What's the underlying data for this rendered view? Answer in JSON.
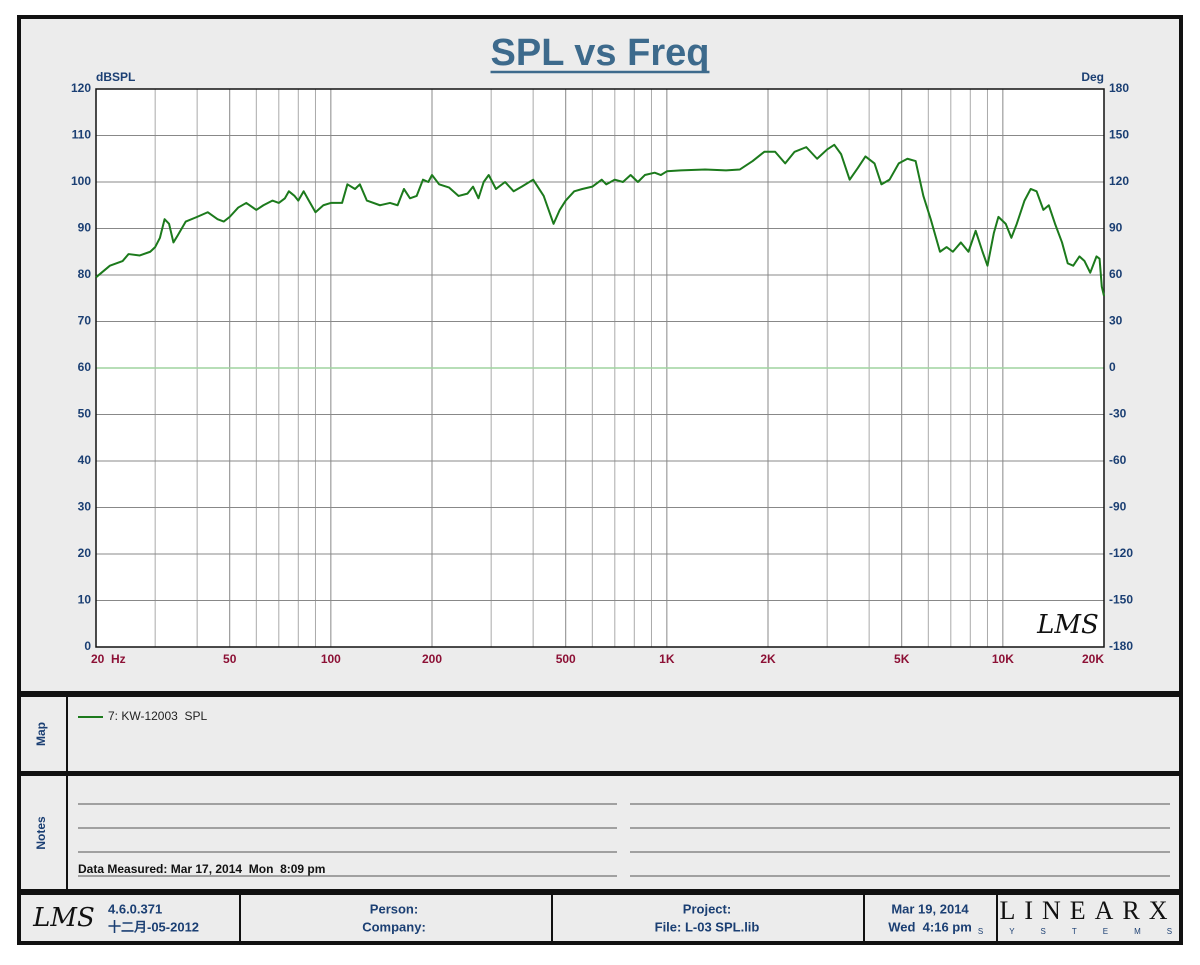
{
  "chart_data": {
    "type": "line",
    "title": "SPL vs Freq",
    "ylabel": "dBSPL",
    "y2label": "Deg",
    "logo": "LMS",
    "x": [
      20,
      22,
      24,
      25,
      27,
      29,
      30,
      31,
      32,
      33,
      34,
      35,
      37,
      40,
      43,
      46,
      48,
      50,
      53,
      56,
      60,
      63,
      67,
      70,
      73,
      75,
      78,
      80,
      83,
      86,
      90,
      95,
      100,
      108,
      112,
      118,
      122,
      128,
      140,
      150,
      158,
      165,
      172,
      180,
      188,
      195,
      200,
      210,
      225,
      240,
      255,
      265,
      275,
      285,
      295,
      310,
      330,
      350,
      370,
      400,
      430,
      460,
      480,
      500,
      530,
      560,
      600,
      640,
      660,
      700,
      740,
      780,
      820,
      860,
      920,
      960,
      1000,
      1100,
      1300,
      1500,
      1650,
      1800,
      1950,
      2100,
      2250,
      2400,
      2600,
      2800,
      3000,
      3150,
      3300,
      3500,
      3700,
      3900,
      4150,
      4350,
      4600,
      4900,
      5200,
      5500,
      5800,
      6100,
      6500,
      6800,
      7100,
      7500,
      7900,
      8300,
      8700,
      9000,
      9400,
      9700,
      10200,
      10600,
      11000,
      11600,
      12100,
      12600,
      13200,
      13700,
      14300,
      15000,
      15600,
      16200,
      16900,
      17500,
      18200,
      19000,
      19400,
      19700,
      20000
    ],
    "series": [
      {
        "name": "7: KW-12003  SPL",
        "color": "#1c7a1c",
        "values": [
          79.5,
          82,
          83,
          84.5,
          84.2,
          85,
          86,
          88,
          92,
          91,
          87,
          88.5,
          91.5,
          92.5,
          93.5,
          92,
          91.5,
          92.5,
          94.5,
          95.5,
          94,
          95,
          96,
          95.5,
          96.5,
          98,
          97,
          96,
          98,
          96,
          93.5,
          95,
          95.5,
          95.5,
          99.5,
          98.5,
          99.5,
          96,
          95,
          95.5,
          95,
          98.5,
          96.5,
          97,
          100.5,
          100,
          101.5,
          99.5,
          98.8,
          97,
          97.5,
          99,
          96.5,
          100,
          101.5,
          98.5,
          100,
          98,
          99,
          100.5,
          97,
          91,
          94,
          96,
          98,
          98.5,
          99,
          100.5,
          99.5,
          100.5,
          100,
          101.5,
          100,
          101.5,
          102,
          101.5,
          102.3,
          102.5,
          102.7,
          102.5,
          102.7,
          104.5,
          106.5,
          106.5,
          104,
          106.5,
          107.5,
          105,
          107,
          108,
          106,
          100.5,
          103,
          105.5,
          104,
          99.5,
          100.5,
          104,
          105,
          104.5,
          97,
          92,
          85,
          86,
          85,
          87,
          85,
          89.5,
          85,
          82,
          89,
          92.5,
          91,
          88,
          91,
          96,
          98.5,
          98,
          94,
          95,
          91,
          87,
          82.5,
          82,
          84,
          83,
          80.5,
          84,
          83.5,
          77.5,
          75.5
        ]
      }
    ],
    "xlim": [
      20,
      20000
    ],
    "log_x": true,
    "xticks": [
      {
        "value": 20,
        "label": "20  Hz"
      },
      50,
      100,
      200,
      500,
      {
        "value": 1000,
        "label": "1K"
      },
      {
        "value": 2000,
        "label": "2K"
      },
      {
        "value": 5000,
        "label": "5K"
      },
      {
        "value": 10000,
        "label": "10K"
      },
      {
        "value": 20000,
        "label": "20K"
      }
    ],
    "ylim": [
      0,
      120
    ],
    "yticks": [
      0,
      10,
      20,
      30,
      40,
      50,
      60,
      70,
      80,
      90,
      100,
      110,
      120
    ],
    "y2lim": [
      -180,
      180
    ],
    "y2ticks": [
      -180,
      -150,
      -120,
      -90,
      -60,
      -30,
      0,
      30,
      60,
      90,
      120,
      150,
      180
    ],
    "grid": true
  },
  "map": {
    "label": "Map"
  },
  "notes": {
    "label": "Notes",
    "measured": "Data Measured: Mar 17, 2014  Mon  8:09 pm"
  },
  "footer": {
    "logo": "LMS",
    "version": "4.6.0.371",
    "build_date": "十二月-05-2012",
    "person": "Person:",
    "company": "Company:",
    "project": "Project:",
    "file": "File: L-03 SPL.lib",
    "date": "Mar 19, 2014",
    "time": "Wed  4:16 pm",
    "brand": "LINEARX",
    "brand_sub": "SYSTEMS"
  }
}
